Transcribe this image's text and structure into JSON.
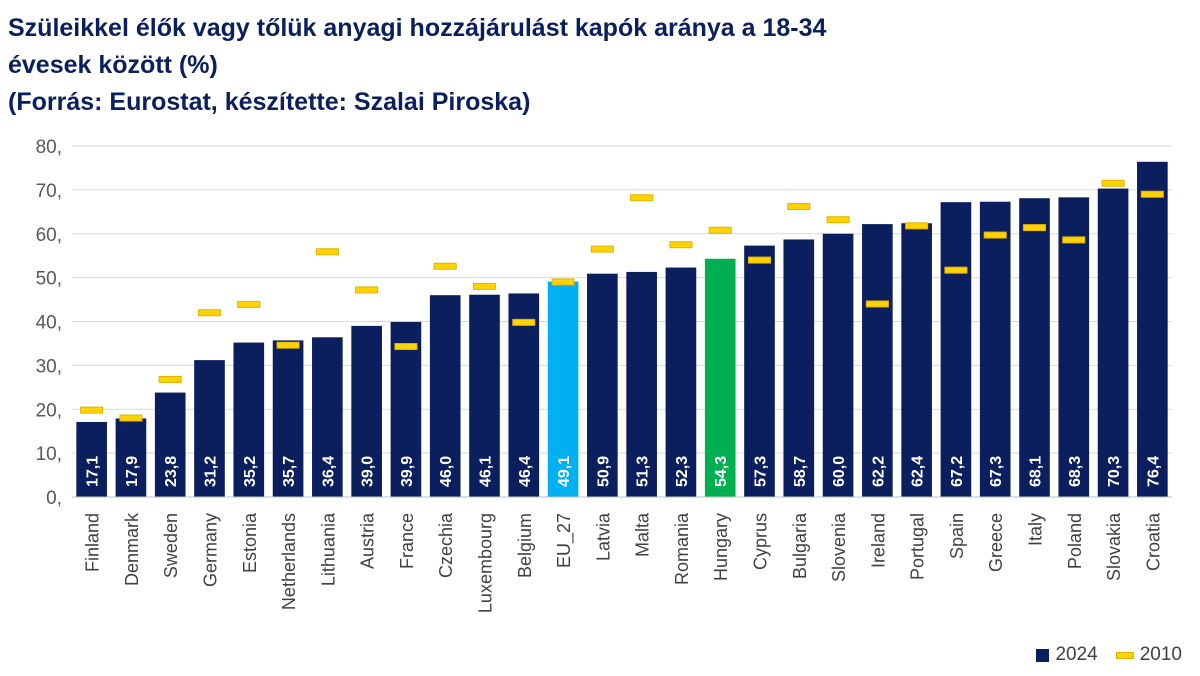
{
  "title_lines": [
    "Szüleikkel élők vagy tőlük anyagi hozzájárulást kapók aránya a 18-34",
    "évesek között (%)",
    "(Forrás: Eurostat, készítette: Szalai Piroska)"
  ],
  "legend": {
    "series_2024": "2024",
    "series_2010": "2010"
  },
  "colors": {
    "bar_default": "#0b1f5e",
    "bar_eu": "#00b0f0",
    "bar_hungary": "#00b050",
    "marker_2010": "#ffd200",
    "marker_2010_border": "#e0b400"
  },
  "chart_data": {
    "type": "bar",
    "title": "Szüleikkel élők vagy tőlük anyagi hozzájárulást kapók aránya a 18-34 évesek között (%)",
    "categories": [
      "Finland",
      "Denmark",
      "Sweden",
      "Germany",
      "Estonia",
      "Netherlands",
      "Lithuania",
      "Austria",
      "France",
      "Czechia",
      "Luxembourg",
      "Belgium",
      "EU_27",
      "Latvia",
      "Malta",
      "Romania",
      "Hungary",
      "Cyprus",
      "Bulgaria",
      "Slovenia",
      "Ireland",
      "Portugal",
      "Spain",
      "Greece",
      "Italy",
      "Poland",
      "Slovakia",
      "Croatia"
    ],
    "series": [
      {
        "name": "2024",
        "values": [
          17.1,
          17.9,
          23.8,
          31.2,
          35.2,
          35.7,
          36.4,
          39.0,
          39.9,
          46.0,
          46.1,
          46.4,
          49.1,
          50.9,
          51.3,
          52.3,
          54.3,
          57.3,
          58.7,
          60.0,
          62.2,
          62.4,
          67.2,
          67.3,
          68.1,
          68.3,
          70.3,
          76.4
        ],
        "labels": [
          "17,1",
          "17,9",
          "23,8",
          "31,2",
          "35,2",
          "35,7",
          "36,4",
          "39,0",
          "39,9",
          "46,0",
          "46,1",
          "46,4",
          "49,1",
          "50,9",
          "51,3",
          "52,3",
          "54,3",
          "57,3",
          "58,7",
          "60,0",
          "62,2",
          "62,4",
          "67,2",
          "67,3",
          "68,1",
          "68,3",
          "70,3",
          "76,4"
        ]
      },
      {
        "name": "2010",
        "values": [
          19.8,
          18.0,
          26.8,
          42.0,
          43.9,
          34.6,
          55.9,
          47.2,
          34.3,
          52.6,
          48.0,
          39.8,
          49.0,
          56.5,
          68.2,
          57.5,
          60.8,
          54.0,
          66.2,
          63.2,
          44.0,
          61.8,
          51.7,
          59.7,
          61.4,
          58.6,
          71.5,
          69.0
        ]
      }
    ],
    "highlight": {
      "EU_27": "bar_eu",
      "Hungary": "bar_hungary"
    },
    "yticks": [
      "0,",
      "10,",
      "20,",
      "30,",
      "40,",
      "50,",
      "60,",
      "70,",
      "80,"
    ],
    "ylim": [
      0,
      80
    ],
    "grid": true,
    "legend_position": "bottom-right"
  }
}
